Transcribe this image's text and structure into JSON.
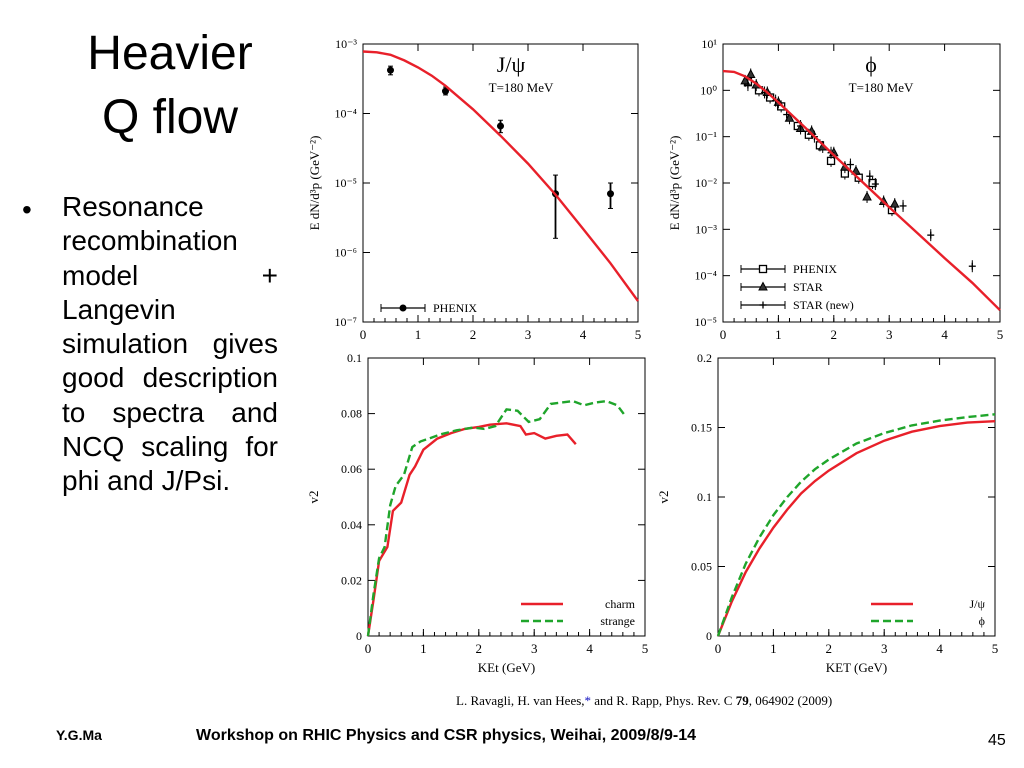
{
  "slide": {
    "title_line1": "Heavier",
    "title_line2": "Q flow",
    "bullet": "Resonance recombination model + Langevin simulation gives good description to spectra and NCQ scaling for phi and J/Psi.",
    "citation_authors": "L. Ravagli, H. van Hees,",
    "citation_star": "*",
    "citation_rest": " and R. Rapp, Phys. Rev. C ",
    "citation_volume": "79",
    "citation_page": ", 064902 (2009)",
    "footer_left": "Y.G.Ma",
    "footer_center": "Workshop on RHIC Physics and CSR physics, Weihai, 2009/8/9-14",
    "page_number": "45"
  },
  "colors": {
    "model_red": "#e8202a",
    "model_green": "#1fa52b",
    "data_black": "#000000"
  },
  "chart_data": [
    {
      "type": "scatter",
      "panel": "jpsi-spectrum",
      "label": "J/ψ",
      "sublabel": "T=180 MeV",
      "ylabel": "E dN/d³p (GeV⁻²)",
      "xlim": [
        0,
        5
      ],
      "ylim": [
        1e-07,
        0.001
      ],
      "yscale": "log",
      "x_ticks": [
        "0",
        "1",
        "2",
        "3",
        "4",
        "5"
      ],
      "y_ticks": [
        "10⁻⁷",
        "10⁻⁶",
        "10⁻⁵",
        "10⁻⁴",
        "10⁻³"
      ],
      "legend": [
        {
          "name": "PHENIX",
          "marker": "circle"
        }
      ],
      "legend_position": "bottom-left",
      "series": [
        {
          "name": "PHENIX",
          "kind": "points",
          "marker": "circle",
          "x": [
            0.5,
            1.5,
            2.5,
            3.5,
            4.5
          ],
          "y": [
            0.00042,
            0.00021,
            6.6e-05,
            7e-06,
            7e-06
          ],
          "err_lo": [
            0.00036,
            0.000185,
            5.3e-05,
            1.6e-06,
            4.3e-06
          ],
          "err_hi": [
            0.00048,
            0.00024,
            8e-05,
            1.3e-05,
            1e-05
          ]
        },
        {
          "name": "model",
          "kind": "line",
          "x": [
            0,
            0.25,
            0.5,
            0.75,
            1.0,
            1.25,
            1.5,
            2.0,
            2.5,
            3.0,
            3.5,
            4.0,
            4.5,
            5.0
          ],
          "y": [
            0.00078,
            0.00076,
            0.0007,
            0.00058,
            0.00046,
            0.00035,
            0.00025,
            0.000115,
            4.8e-05,
            1.9e-05,
            6.8e-06,
            2.2e-06,
            7e-07,
            2e-07
          ]
        }
      ]
    },
    {
      "type": "scatter",
      "panel": "phi-spectrum",
      "label": "ϕ",
      "sublabel": "T=180 MeV",
      "ylabel": "E dN/d³p (GeV⁻²)",
      "xlim": [
        0,
        5
      ],
      "ylim": [
        1e-05,
        10
      ],
      "yscale": "log",
      "x_ticks": [
        "0",
        "1",
        "2",
        "3",
        "4",
        "5"
      ],
      "y_ticks": [
        "10⁻⁵",
        "10⁻⁴",
        "10⁻³",
        "10⁻²",
        "10⁻¹",
        "10⁰",
        "10¹"
      ],
      "legend": [
        {
          "name": "PHENIX",
          "marker": "square"
        },
        {
          "name": "STAR",
          "marker": "triangle"
        },
        {
          "name": "STAR (new)",
          "marker": "cross"
        }
      ],
      "legend_position": "bottom-left",
      "series": [
        {
          "name": "PHENIX",
          "kind": "points",
          "marker": "square",
          "x": [
            0.45,
            0.65,
            0.85,
            1.05,
            1.35,
            1.55,
            1.75,
            1.95,
            2.2,
            2.45,
            2.7,
            3.05
          ],
          "y": [
            1.5,
            1.0,
            0.7,
            0.45,
            0.17,
            0.11,
            0.065,
            0.03,
            0.016,
            0.013,
            0.01,
            0.0026
          ]
        },
        {
          "name": "STAR",
          "kind": "points",
          "marker": "triangle",
          "x": [
            0.4,
            0.5,
            0.6,
            0.8,
            1.0,
            1.2,
            1.4,
            1.6,
            1.8,
            2.0,
            2.2,
            2.4,
            2.6,
            2.9,
            3.1
          ],
          "y": [
            1.6,
            2.2,
            1.3,
            0.9,
            0.55,
            0.25,
            0.15,
            0.13,
            0.06,
            0.045,
            0.022,
            0.018,
            0.005,
            0.004,
            0.0035
          ]
        },
        {
          "name": "STAR (new)",
          "kind": "points",
          "marker": "cross",
          "x": [
            0.45,
            0.75,
            0.95,
            1.15,
            1.4,
            1.65,
            1.95,
            2.3,
            2.65,
            2.75,
            3.25,
            3.75,
            4.5
          ],
          "y": [
            1.3,
            0.9,
            0.6,
            0.3,
            0.17,
            0.1,
            0.045,
            0.025,
            0.014,
            0.0095,
            0.0032,
            0.00075,
            0.00016
          ]
        },
        {
          "name": "model",
          "kind": "line",
          "x": [
            0,
            0.2,
            0.4,
            0.6,
            0.8,
            1.0,
            1.5,
            2.0,
            2.5,
            3.0,
            3.5,
            4.0,
            4.5,
            5.0
          ],
          "y": [
            2.6,
            2.5,
            2.0,
            1.4,
            0.9,
            0.55,
            0.15,
            0.04,
            0.011,
            0.003,
            0.00085,
            0.00024,
            7e-05,
            1.8e-05
          ]
        }
      ]
    },
    {
      "type": "line",
      "panel": "v2-jpsi-phi-strange-charm",
      "xlabel": "KEt (GeV)",
      "ylabel": "v2",
      "xlim": [
        0,
        5
      ],
      "ylim": [
        0,
        0.1
      ],
      "x_ticks": [
        "0",
        "1",
        "2",
        "3",
        "4",
        "5"
      ],
      "y_ticks": [
        "0",
        "0.02",
        "0.04",
        "0.06",
        "0.08",
        "0.1"
      ],
      "legend_position": "bottom-right",
      "series": [
        {
          "name": "charm",
          "style": "solid-red",
          "x": [
            0,
            0.1,
            0.2,
            0.35,
            0.45,
            0.6,
            0.75,
            0.85,
            1.0,
            1.25,
            1.5,
            1.75,
            2.0,
            2.2,
            2.5,
            2.75,
            2.85,
            3.0,
            3.2,
            3.4,
            3.6,
            3.75
          ],
          "y": [
            0,
            0.013,
            0.027,
            0.032,
            0.045,
            0.048,
            0.058,
            0.061,
            0.067,
            0.071,
            0.073,
            0.0745,
            0.0752,
            0.076,
            0.0765,
            0.0755,
            0.0725,
            0.073,
            0.071,
            0.072,
            0.0725,
            0.069
          ]
        },
        {
          "name": "strange",
          "style": "dashed-green",
          "x": [
            0,
            0.1,
            0.2,
            0.3,
            0.4,
            0.5,
            0.65,
            0.8,
            0.95,
            1.1,
            1.3,
            1.6,
            1.9,
            2.1,
            2.3,
            2.5,
            2.7,
            2.9,
            3.1,
            3.3,
            3.5,
            3.7,
            3.9,
            4.1,
            4.3,
            4.5,
            4.65
          ],
          "y": [
            0,
            0.015,
            0.028,
            0.032,
            0.047,
            0.054,
            0.058,
            0.068,
            0.07,
            0.071,
            0.0725,
            0.074,
            0.075,
            0.0745,
            0.0755,
            0.0815,
            0.081,
            0.077,
            0.078,
            0.0835,
            0.084,
            0.0845,
            0.083,
            0.084,
            0.0845,
            0.083,
            0.079
          ]
        }
      ]
    },
    {
      "type": "line",
      "panel": "v2-jpsi-phi",
      "xlabel": "KET (GeV)",
      "ylabel": "v2",
      "xlim": [
        0,
        5
      ],
      "ylim": [
        0,
        0.2
      ],
      "x_ticks": [
        "0",
        "1",
        "2",
        "3",
        "4",
        "5"
      ],
      "y_ticks": [
        "0",
        "0.05",
        "0.1",
        "0.15",
        "0.2"
      ],
      "legend_position": "bottom-right",
      "series": [
        {
          "name": "J/ψ",
          "style": "solid-red",
          "x": [
            0,
            0.25,
            0.5,
            0.75,
            1.0,
            1.25,
            1.5,
            1.75,
            2.0,
            2.5,
            3.0,
            3.5,
            4.0,
            4.5,
            5.0
          ],
          "y": [
            0,
            0.025,
            0.046,
            0.063,
            0.078,
            0.091,
            0.1025,
            0.1115,
            0.119,
            0.1315,
            0.1405,
            0.147,
            0.151,
            0.1535,
            0.1545
          ]
        },
        {
          "name": "ϕ",
          "style": "dashed-green",
          "x": [
            0,
            0.25,
            0.5,
            0.75,
            1.0,
            1.25,
            1.5,
            1.75,
            2.0,
            2.5,
            3.0,
            3.5,
            4.0,
            4.5,
            5.0
          ],
          "y": [
            0,
            0.028,
            0.052,
            0.071,
            0.087,
            0.1,
            0.111,
            0.12,
            0.127,
            0.1385,
            0.146,
            0.1515,
            0.155,
            0.1575,
            0.1595
          ]
        }
      ]
    }
  ]
}
